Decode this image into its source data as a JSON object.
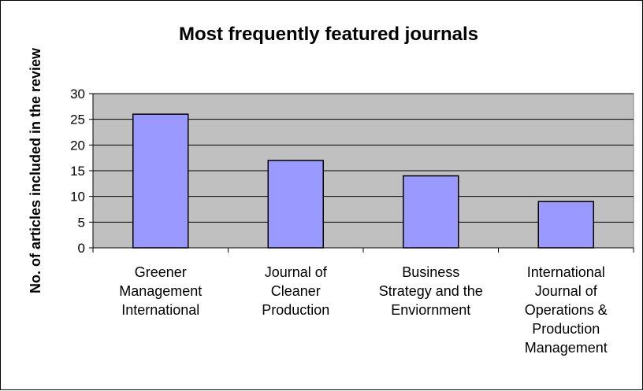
{
  "chart_data": {
    "type": "bar",
    "title": "Most frequently featured journals",
    "xlabel": "",
    "ylabel": "No. of articles included in the review",
    "categories": [
      "Greener Management International",
      "Journal of Cleaner Production",
      "Business Strategy and the Enviornment",
      "International Journal of Operations & Production Management"
    ],
    "category_lines": [
      [
        "Greener",
        "Management",
        "International"
      ],
      [
        "Journal of",
        "Cleaner",
        "Production"
      ],
      [
        "Business",
        "Strategy and the",
        "Enviornment"
      ],
      [
        "International",
        "Journal of",
        "Operations &",
        "Production",
        "Management"
      ]
    ],
    "values": [
      26,
      17,
      14,
      9
    ],
    "ylim": [
      0,
      30
    ],
    "yticks": [
      "0",
      "5",
      "10",
      "15",
      "20",
      "25",
      "30"
    ],
    "grid": true,
    "legend": "none",
    "colors": {
      "bar_fill": "#9999ff",
      "plot_background": "#c0c0c0",
      "gridline": "#000000"
    }
  }
}
